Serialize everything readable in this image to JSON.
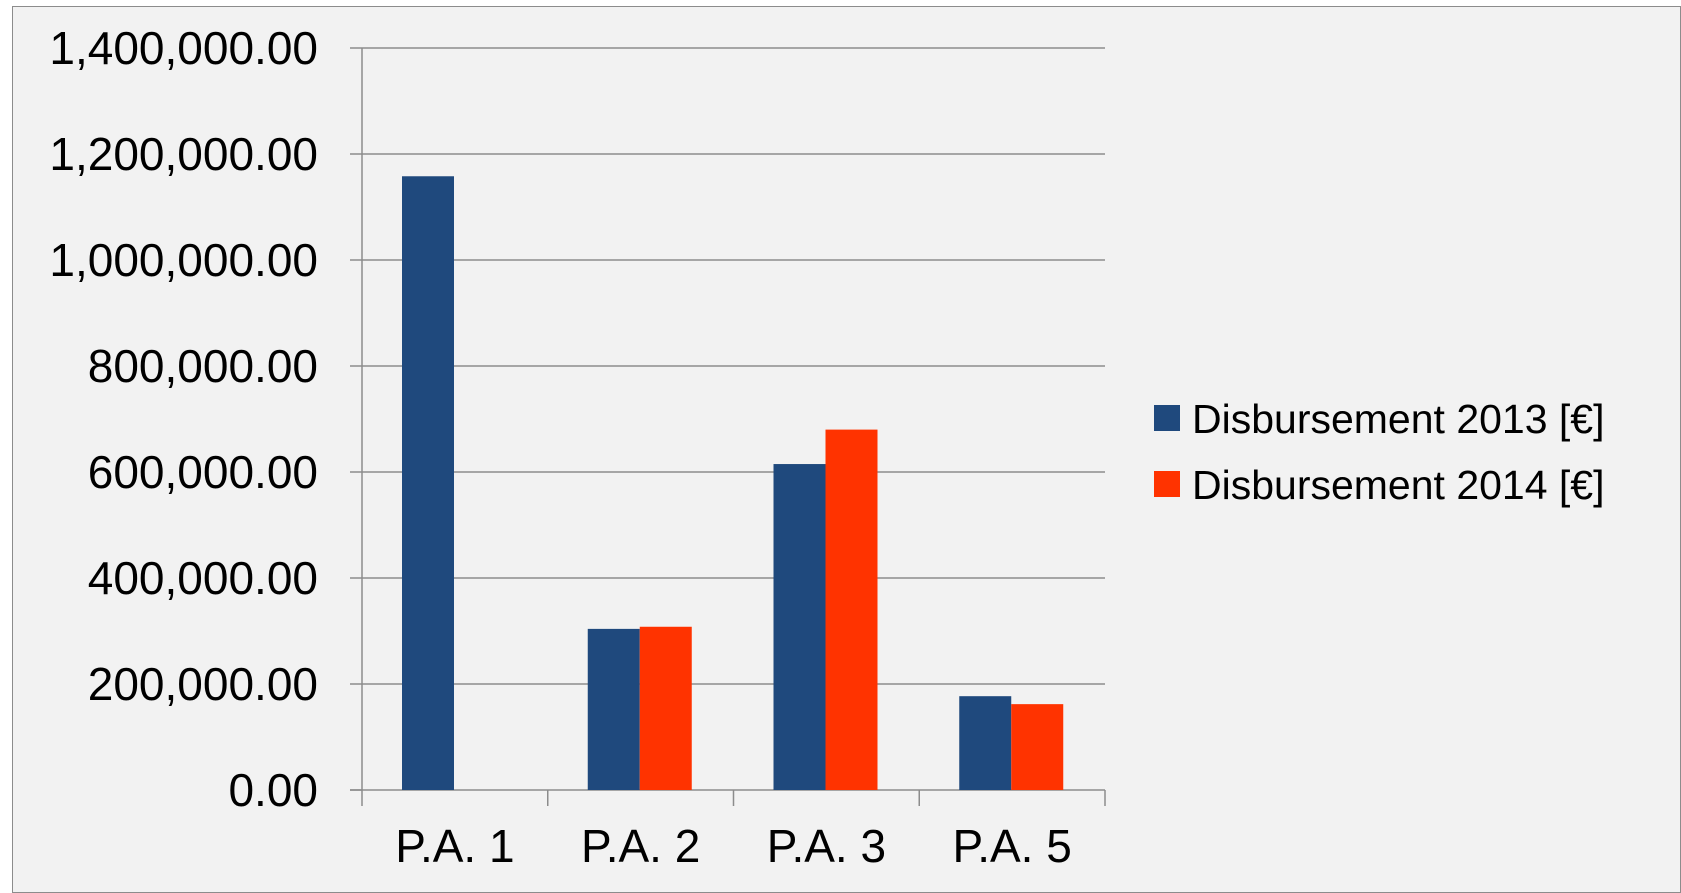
{
  "chart_data": {
    "type": "bar",
    "title": "",
    "xlabel": "",
    "ylabel": "",
    "categories": [
      "P.A. 1",
      "P.A. 2",
      "P.A. 3",
      "P.A. 5"
    ],
    "series": [
      {
        "name": "Disbursement 2013 [€]",
        "color": "#1f497d",
        "values": [
          1158000,
          304000,
          615000,
          177000
        ]
      },
      {
        "name": "Disbursement 2014 [€]",
        "color": "#ff3300",
        "values": [
          null,
          308000,
          680000,
          162000
        ]
      }
    ],
    "ylim": [
      0,
      1400000
    ],
    "y_ticks": [
      0,
      200000,
      400000,
      600000,
      800000,
      1000000,
      1200000,
      1400000
    ],
    "y_tick_labels": [
      "0.00",
      "200,000.00",
      "400,000.00",
      "600,000.00",
      "800,000.00",
      "1,000,000.00",
      "1,200,000.00",
      "1,400,000.00"
    ],
    "grid": true,
    "gridline_color": "#8c8c8c",
    "background_color": "#f2f2f2",
    "legend_position": "right"
  }
}
